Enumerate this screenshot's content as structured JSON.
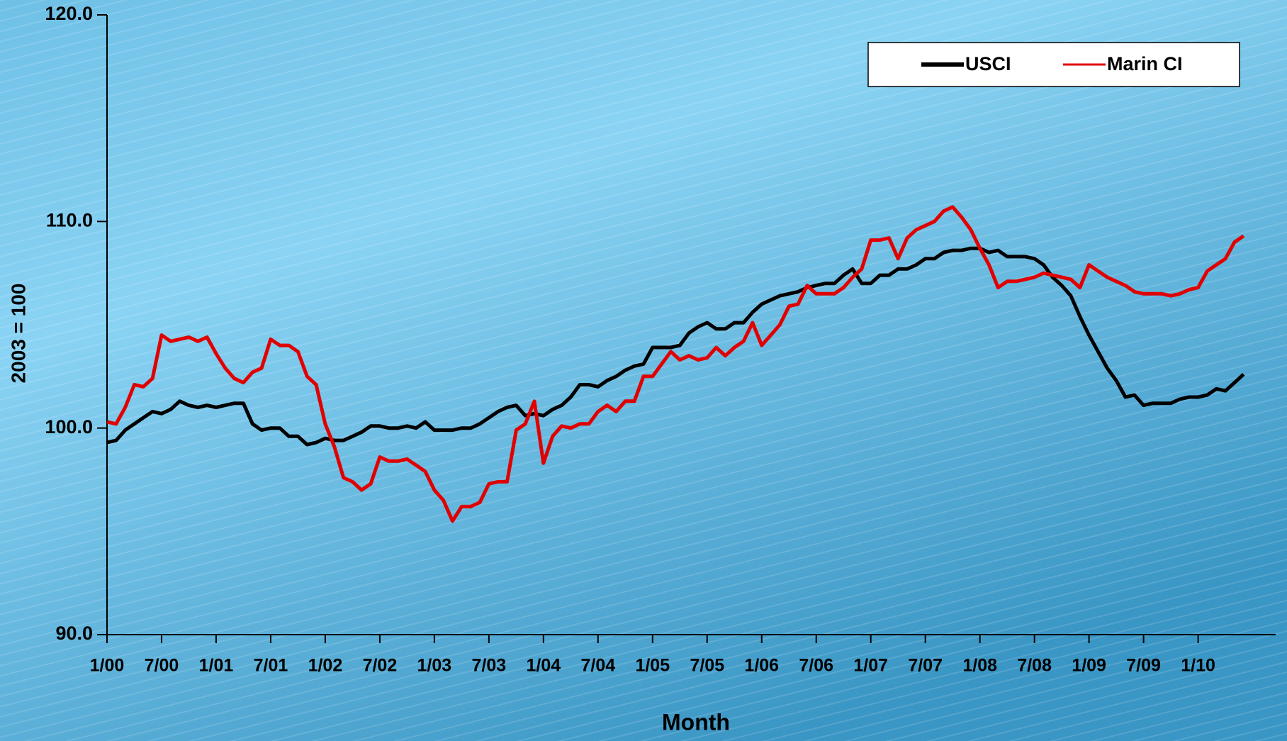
{
  "chart_data": {
    "type": "line",
    "x_label": "Month",
    "y_label": "2003 = 100",
    "categories": [
      "1/00",
      null,
      null,
      null,
      null,
      null,
      "7/00",
      null,
      null,
      null,
      null,
      null,
      "1/01",
      null,
      null,
      null,
      null,
      null,
      "7/01",
      null,
      null,
      null,
      null,
      null,
      "1/02",
      null,
      null,
      null,
      null,
      null,
      "7/02",
      null,
      null,
      null,
      null,
      null,
      "1/03",
      null,
      null,
      null,
      null,
      null,
      "7/03",
      null,
      null,
      null,
      null,
      null,
      "1/04",
      null,
      null,
      null,
      null,
      null,
      "7/04",
      null,
      null,
      null,
      null,
      null,
      "1/05",
      null,
      null,
      null,
      null,
      null,
      "7/05",
      null,
      null,
      null,
      null,
      null,
      "1/06",
      null,
      null,
      null,
      null,
      null,
      "7/06",
      null,
      null,
      null,
      null,
      null,
      "1/07",
      null,
      null,
      null,
      null,
      null,
      "7/07",
      null,
      null,
      null,
      null,
      null,
      "1/08",
      null,
      null,
      null,
      null,
      null,
      "7/08",
      null,
      null,
      null,
      null,
      null,
      "1/09",
      null,
      null,
      null,
      null,
      null,
      "7/09",
      null,
      null,
      null,
      null,
      null,
      "1/10",
      null,
      null,
      null,
      null,
      null
    ],
    "series": [
      {
        "name": "USCI",
        "color": "#000000",
        "values": [
          99.3,
          99.4,
          99.9,
          100.2,
          100.5,
          100.8,
          100.7,
          100.9,
          101.3,
          101.1,
          101.0,
          101.1,
          101.0,
          101.1,
          101.2,
          101.2,
          100.2,
          99.9,
          100.0,
          100.0,
          99.6,
          99.6,
          99.2,
          99.3,
          99.5,
          99.4,
          99.4,
          99.6,
          99.8,
          100.1,
          100.1,
          100.0,
          100.0,
          100.1,
          100.0,
          100.3,
          99.9,
          99.9,
          99.9,
          100.0,
          100.0,
          100.2,
          100.5,
          100.8,
          101.0,
          101.1,
          100.6,
          100.7,
          100.6,
          100.9,
          101.1,
          101.5,
          102.1,
          102.1,
          102.0,
          102.3,
          102.5,
          102.8,
          103.0,
          103.1,
          103.9,
          103.9,
          103.9,
          104.0,
          104.6,
          104.9,
          105.1,
          104.8,
          104.8,
          105.1,
          105.1,
          105.6,
          106.0,
          106.2,
          106.4,
          106.5,
          106.6,
          106.8,
          106.9,
          107.0,
          107.0,
          107.4,
          107.7,
          107.0,
          107.0,
          107.4,
          107.4,
          107.7,
          107.7,
          107.9,
          108.2,
          108.2,
          108.5,
          108.6,
          108.6,
          108.7,
          108.7,
          108.5,
          108.6,
          108.3,
          108.3,
          108.3,
          108.2,
          107.9,
          107.3,
          106.9,
          106.4,
          105.4,
          104.5,
          103.7,
          102.9,
          102.3,
          101.5,
          101.6,
          101.1,
          101.2,
          101.2,
          101.2,
          101.4,
          101.5,
          101.5,
          101.6,
          101.9,
          101.8,
          102.2,
          102.6
        ]
      },
      {
        "name": "Marin CI",
        "color": "#e00000",
        "values": [
          100.3,
          100.2,
          101.0,
          102.1,
          102.0,
          102.4,
          104.5,
          104.2,
          104.3,
          104.4,
          104.2,
          104.4,
          103.6,
          102.9,
          102.4,
          102.2,
          102.7,
          102.9,
          104.3,
          104.0,
          104.0,
          103.7,
          102.5,
          102.1,
          100.2,
          99.1,
          97.6,
          97.4,
          97.0,
          97.3,
          98.6,
          98.4,
          98.4,
          98.5,
          98.2,
          97.9,
          97.0,
          96.5,
          95.5,
          96.2,
          96.2,
          96.4,
          97.3,
          97.4,
          97.4,
          99.9,
          100.2,
          101.3,
          98.3,
          99.6,
          100.1,
          100.0,
          100.2,
          100.2,
          100.8,
          101.1,
          100.8,
          101.3,
          101.3,
          102.5,
          102.5,
          103.1,
          103.7,
          103.3,
          103.5,
          103.3,
          103.4,
          103.9,
          103.5,
          103.9,
          104.2,
          105.1,
          104.0,
          104.5,
          105.0,
          105.9,
          106.0,
          106.9,
          106.5,
          106.5,
          106.5,
          106.8,
          107.3,
          107.7,
          109.1,
          109.1,
          109.2,
          108.2,
          109.2,
          109.6,
          109.8,
          110.0,
          110.5,
          110.7,
          110.2,
          109.6,
          108.7,
          107.9,
          106.8,
          107.1,
          107.1,
          107.2,
          107.3,
          107.5,
          107.4,
          107.3,
          107.2,
          106.8,
          107.9,
          107.6,
          107.3,
          107.1,
          106.9,
          106.6,
          106.5,
          106.5,
          106.5,
          106.4,
          106.5,
          106.7,
          106.8,
          107.6,
          107.9,
          108.2,
          109.0,
          109.3
        ]
      }
    ],
    "ylim": [
      90,
      120
    ],
    "yticks": [
      {
        "value": 90,
        "label": "90.0"
      },
      {
        "value": 100,
        "label": "100.0"
      },
      {
        "value": 110,
        "label": "110.0"
      },
      {
        "value": 120,
        "label": "120.0"
      }
    ],
    "legend": "top-right"
  }
}
